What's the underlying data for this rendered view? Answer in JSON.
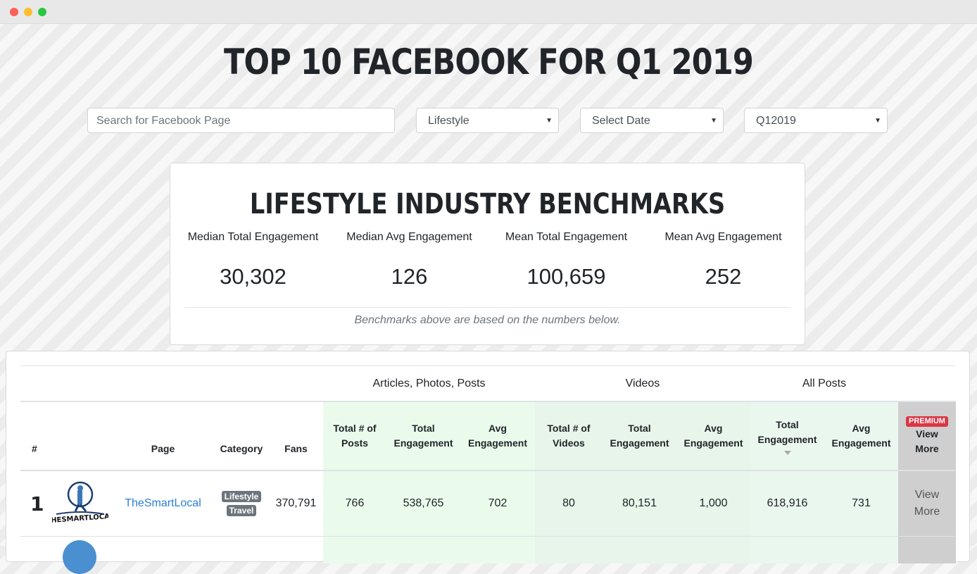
{
  "title": "TOP 10 FACEBOOK FOR Q1 2019",
  "filters": {
    "search_placeholder": "Search for Facebook Page",
    "category": "Lifestyle",
    "date": "Select Date",
    "quarter": "Q12019"
  },
  "benchmarks": {
    "title": "LIFESTYLE INDUSTRY BENCHMARKS",
    "metrics": [
      {
        "label": "Median Total Engagement",
        "value": "30,302"
      },
      {
        "label": "Median Avg Engagement",
        "value": "126"
      },
      {
        "label": "Mean Total Engagement",
        "value": "100,659"
      },
      {
        "label": "Mean Avg Engagement",
        "value": "252"
      }
    ],
    "note": "Benchmarks above are based on the numbers below."
  },
  "table": {
    "groups": {
      "posts": "Articles, Photos, Posts",
      "videos": "Videos",
      "all": "All Posts"
    },
    "headers": {
      "rank": "#",
      "page": "Page",
      "category": "Category",
      "fans": "Fans",
      "posts_total": "Total # of Posts",
      "posts_eng": "Total Engagement",
      "posts_avg": "Avg Engagement",
      "videos_total": "Total # of Videos",
      "videos_eng": "Total Engagement",
      "videos_avg": "Avg Engagement",
      "all_eng": "Total Engagement",
      "all_avg": "Avg Engagement",
      "premium": "PREMIUM",
      "view_more": "View More"
    },
    "rows": [
      {
        "rank": "1",
        "logo_text": "THESMARTLOCAL",
        "page": "TheSmartLocal",
        "categories": [
          "Lifestyle",
          "Travel"
        ],
        "fans": "370,791",
        "posts_total": "766",
        "posts_eng": "538,765",
        "posts_avg": "702",
        "videos_total": "80",
        "videos_eng": "80,151",
        "videos_avg": "1,000",
        "all_eng": "618,916",
        "all_avg": "731",
        "view_more": "View More"
      }
    ]
  }
}
